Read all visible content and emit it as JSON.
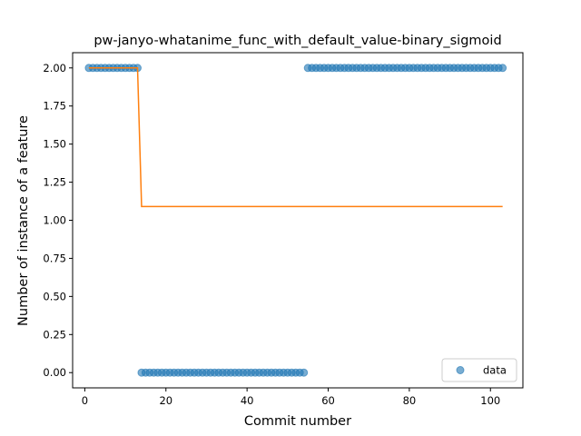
{
  "chart_data": {
    "type": "scatter",
    "title": "pw-janyo-whatanime_func_with_default_value-binary_sigmoid",
    "xlabel": "Commit number",
    "ylabel": "Number of instance of a feature",
    "xlim": [
      -3,
      108
    ],
    "ylim": [
      -0.1,
      2.1
    ],
    "x_ticks": [
      0,
      20,
      40,
      60,
      80,
      100
    ],
    "x_tick_labels": [
      "0",
      "20",
      "40",
      "60",
      "80",
      "100"
    ],
    "y_ticks": [
      0.0,
      0.25,
      0.5,
      0.75,
      1.0,
      1.25,
      1.5,
      1.75,
      2.0
    ],
    "y_tick_labels": [
      "0.00",
      "0.25",
      "0.50",
      "0.75",
      "1.00",
      "1.25",
      "1.50",
      "1.75",
      "2.00"
    ],
    "legend": {
      "entries": [
        "data"
      ],
      "placement": "lower-right"
    },
    "grid": false,
    "series": [
      {
        "name": "data",
        "kind": "scatter",
        "color": "#1f77b4",
        "segments": [
          {
            "x_from": 1,
            "x_to": 13,
            "y": 2
          },
          {
            "x_from": 14,
            "x_to": 54,
            "y": 0
          },
          {
            "x_from": 55,
            "x_to": 103,
            "y": 2
          }
        ]
      },
      {
        "kind": "line",
        "color": "#ff7f0e",
        "x": [
          1,
          13,
          14,
          103
        ],
        "y": [
          2.0,
          2.0,
          1.09,
          1.09
        ]
      }
    ]
  }
}
